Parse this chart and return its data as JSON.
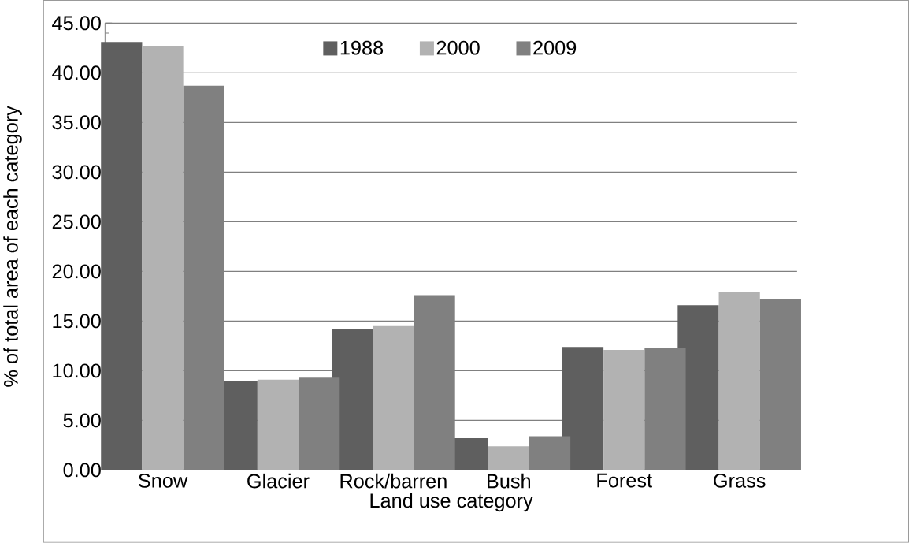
{
  "chart_data": {
    "type": "bar",
    "xlabel": "Land use category",
    "ylabel": "% of total area of each category",
    "categories": [
      "Snow",
      "Glacier",
      "Rock/barren",
      "Bush",
      "Forest",
      "Grass"
    ],
    "series": [
      {
        "name": "1988",
        "color": "#5f5f5f",
        "values": [
          43.1,
          9.0,
          14.2,
          3.2,
          12.4,
          16.6
        ]
      },
      {
        "name": "2000",
        "color": "#b2b2b2",
        "values": [
          42.7,
          9.1,
          14.5,
          2.4,
          12.1,
          17.9
        ]
      },
      {
        "name": "2009",
        "color": "#808080",
        "values": [
          38.7,
          9.3,
          17.6,
          3.4,
          12.3,
          17.2
        ]
      }
    ],
    "ylim": [
      0,
      45
    ],
    "yticks": [
      {
        "value": 0,
        "label": "0.00"
      },
      {
        "value": 5,
        "label": "5.00"
      },
      {
        "value": 10,
        "label": "10.00"
      },
      {
        "value": 15,
        "label": "15.00"
      },
      {
        "value": 20,
        "label": "20.00"
      },
      {
        "value": 25,
        "label": "25.00"
      },
      {
        "value": 30,
        "label": "30.00"
      },
      {
        "value": 35,
        "label": "35.00"
      },
      {
        "value": 40,
        "label": "40.00"
      },
      {
        "value": 45,
        "label": "45.00"
      }
    ],
    "grid": "y",
    "legend": "top"
  }
}
